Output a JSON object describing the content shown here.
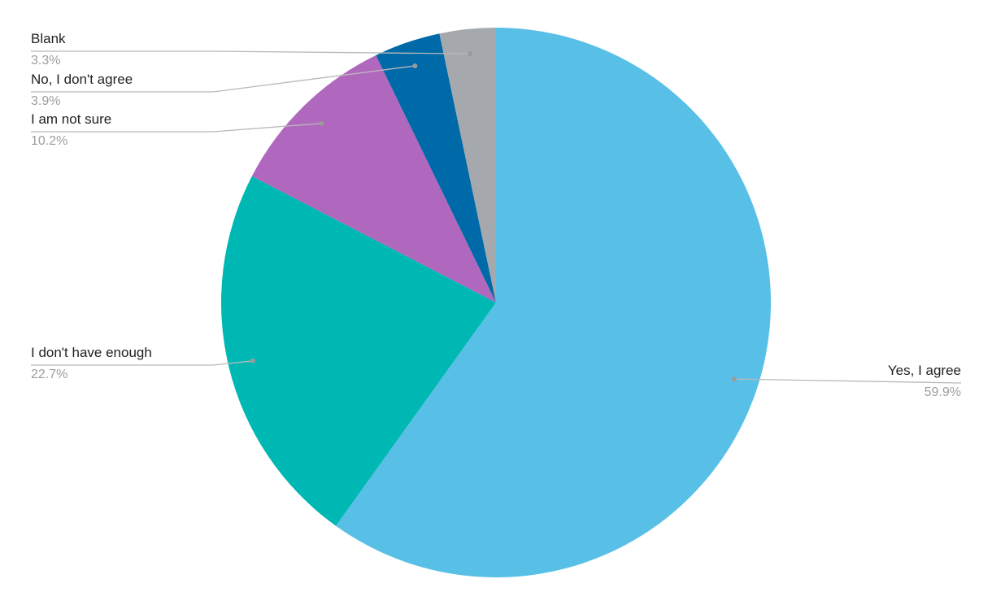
{
  "chart_data": {
    "type": "pie",
    "title": "",
    "legend": "none",
    "slices": [
      {
        "label": "Yes, I agree",
        "value": 59.9,
        "value_label": "59.9%",
        "color": "#58c0e7"
      },
      {
        "label": "I don't have enough",
        "value": 22.7,
        "value_label": "22.7%",
        "color": "#00b8b3"
      },
      {
        "label": "I am not sure",
        "value": 10.2,
        "value_label": "10.2%",
        "color": "#b068be"
      },
      {
        "label": "No, I don't agree",
        "value": 3.9,
        "value_label": "3.9%",
        "color": "#0069a8"
      },
      {
        "label": "Blank",
        "value": 3.3,
        "value_label": "3.3%",
        "color": "#a5a8ad"
      }
    ]
  }
}
